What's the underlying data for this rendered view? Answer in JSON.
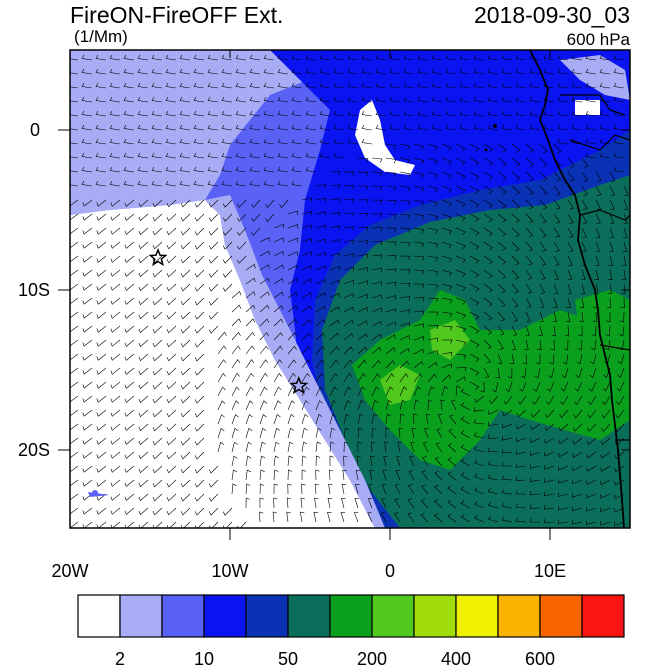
{
  "title_left": "FireON-FireOFF Ext.",
  "units": "(1/Mm)",
  "title_right": "2018-09-30_03",
  "level": "600 hPa",
  "axes": {
    "x_ticks": [
      "20W",
      "10W",
      "0",
      "10E"
    ],
    "y_ticks": [
      "0",
      "10S",
      "20S"
    ]
  },
  "colorbar": {
    "colors": [
      "#ffffff",
      "#a8acf5",
      "#5a62f5",
      "#0a14f0",
      "#0a32b4",
      "#0b6e5a",
      "#0aa01e",
      "#50c81e",
      "#a0dc0a",
      "#f0f000",
      "#fab400",
      "#fa6400",
      "#fa1414"
    ],
    "labels": [
      "2",
      "10",
      "50",
      "200",
      "400",
      "600"
    ]
  },
  "markers": [
    {
      "name": "star",
      "lon": -14.5,
      "lat": -8
    },
    {
      "name": "star",
      "lon": -5.7,
      "lat": -16
    }
  ],
  "colors": {
    "white": "#ffffff",
    "light_lavender": "#a8acf5",
    "medium_blue": "#5a62f5",
    "blue": "#0a14f0",
    "dark_blue": "#0a32b4",
    "teal": "#0b6e5a",
    "green": "#0aa01e",
    "light_green": "#50c81e"
  }
}
